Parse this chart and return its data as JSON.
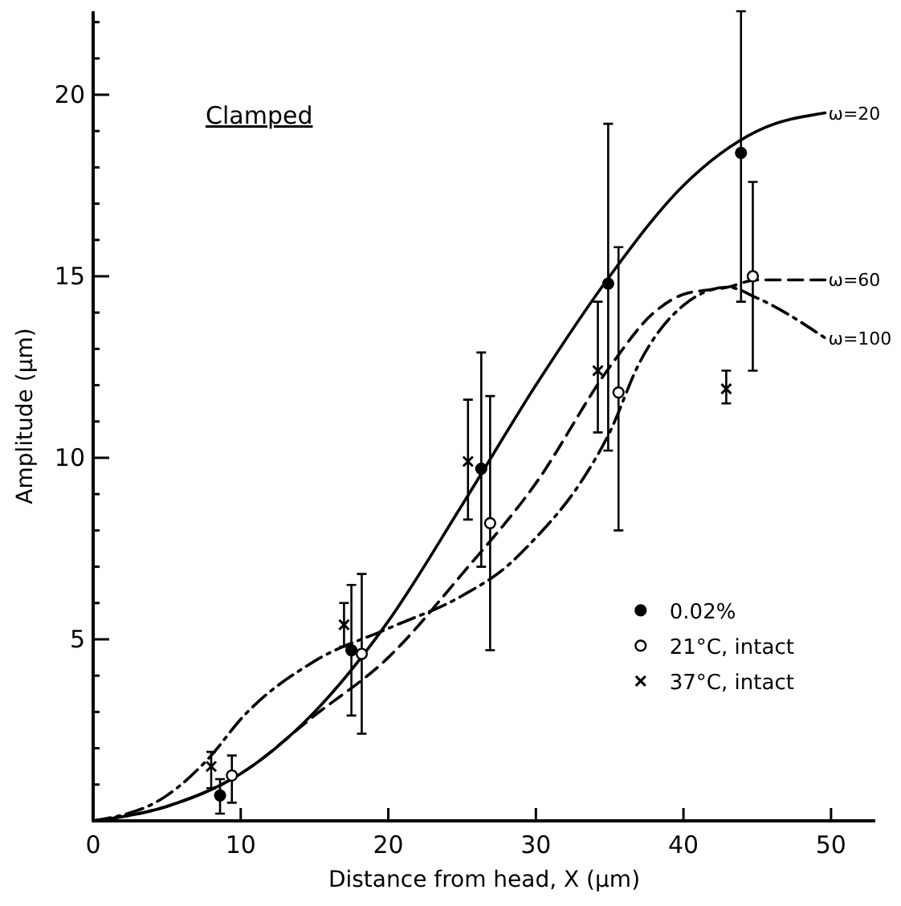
{
  "chart_data": {
    "type": "scatter",
    "xlabel": "Distance from head, X (μm)",
    "ylabel": "Amplitude (μm)",
    "annotations": [
      "Clamped"
    ],
    "xlim": [
      0,
      53
    ],
    "xticks": [
      0,
      10,
      20,
      30,
      40,
      50
    ],
    "ylim": [
      0,
      22.3
    ],
    "yticks": [
      {
        "value": 1,
        "label": null
      },
      {
        "value": 2,
        "label": null
      },
      {
        "value": 3,
        "label": null
      },
      {
        "value": 4,
        "label": null
      },
      5,
      {
        "value": 6,
        "label": null
      },
      {
        "value": 7,
        "label": null
      },
      {
        "value": 8,
        "label": null
      },
      {
        "value": 9,
        "label": null
      },
      10,
      {
        "value": 11,
        "label": null
      },
      {
        "value": 12,
        "label": null
      },
      {
        "value": 13,
        "label": null
      },
      {
        "value": 14,
        "label": null
      },
      15,
      {
        "value": 16,
        "label": null
      },
      {
        "value": 17,
        "label": null
      },
      {
        "value": 18,
        "label": null
      },
      {
        "value": 19,
        "label": null
      },
      20,
      {
        "value": 21,
        "label": null
      },
      {
        "value": 22,
        "label": null
      }
    ],
    "grid": false,
    "legend": "right",
    "series": [
      {
        "type": "line",
        "name": "ω=20",
        "color": "#000000",
        "line_style": "solid",
        "x": [
          0,
          5,
          10,
          15,
          20,
          25,
          30,
          35,
          40,
          45,
          49.6
        ],
        "values": [
          0,
          0.4,
          1.3,
          3.0,
          5.5,
          8.7,
          12.0,
          15.0,
          17.5,
          19.0,
          19.5
        ]
      },
      {
        "type": "line",
        "name": "ω=60",
        "color": "#000000",
        "line_style": "dashed",
        "x": [
          0,
          5,
          10,
          15,
          20,
          25,
          30,
          35,
          38,
          40,
          43,
          45,
          49.6
        ],
        "values": [
          0,
          0.4,
          1.3,
          2.9,
          4.5,
          6.8,
          9.3,
          12.5,
          14.0,
          14.5,
          14.7,
          14.9,
          14.9
        ]
      },
      {
        "type": "line",
        "name": "ω=100",
        "color": "#000000",
        "line_style": "dotted",
        "x": [
          0,
          5,
          8,
          10,
          15,
          20,
          25,
          28,
          30,
          33,
          35,
          37,
          40,
          43,
          45,
          49.6
        ],
        "values": [
          0,
          0.7,
          1.8,
          2.8,
          4.4,
          5.3,
          6.2,
          7.0,
          7.8,
          9.3,
          10.7,
          12.6,
          14.2,
          14.7,
          14.4,
          13.3
        ]
      },
      {
        "name": "0.02%",
        "color": "#000000",
        "marker": "circle",
        "x": [
          8.6,
          17.5,
          26.3,
          34.9,
          43.9
        ],
        "values": [
          0.7,
          4.7,
          9.7,
          14.8,
          18.4
        ],
        "errors": [
          [
            0.2,
            1.15
          ],
          [
            2.9,
            6.5
          ],
          [
            7.0,
            12.9
          ],
          [
            10.2,
            19.2
          ],
          [
            14.3,
            22.3
          ]
        ]
      },
      {
        "name": "21°C, intact",
        "color": "#ffffff",
        "marker": "circle",
        "x": [
          9.4,
          18.2,
          26.9,
          35.6,
          44.7
        ],
        "values": [
          1.25,
          4.6,
          8.2,
          11.8,
          15.0
        ],
        "errors": [
          [
            0.5,
            1.8
          ],
          [
            2.4,
            6.8
          ],
          [
            4.7,
            11.7
          ],
          [
            8.0,
            15.8
          ],
          [
            12.4,
            17.6
          ]
        ]
      },
      {
        "name": "37°C, intact",
        "color": "#000000",
        "marker": "cross",
        "x": [
          8.0,
          17.0,
          25.4,
          34.2,
          42.9
        ],
        "values": [
          1.5,
          5.4,
          9.9,
          12.4,
          11.9
        ],
        "errors": [
          [
            0.9,
            1.9
          ],
          [
            4.8,
            6.0
          ],
          [
            8.3,
            11.6
          ],
          [
            10.7,
            14.3
          ],
          [
            11.5,
            12.4
          ]
        ]
      }
    ]
  }
}
